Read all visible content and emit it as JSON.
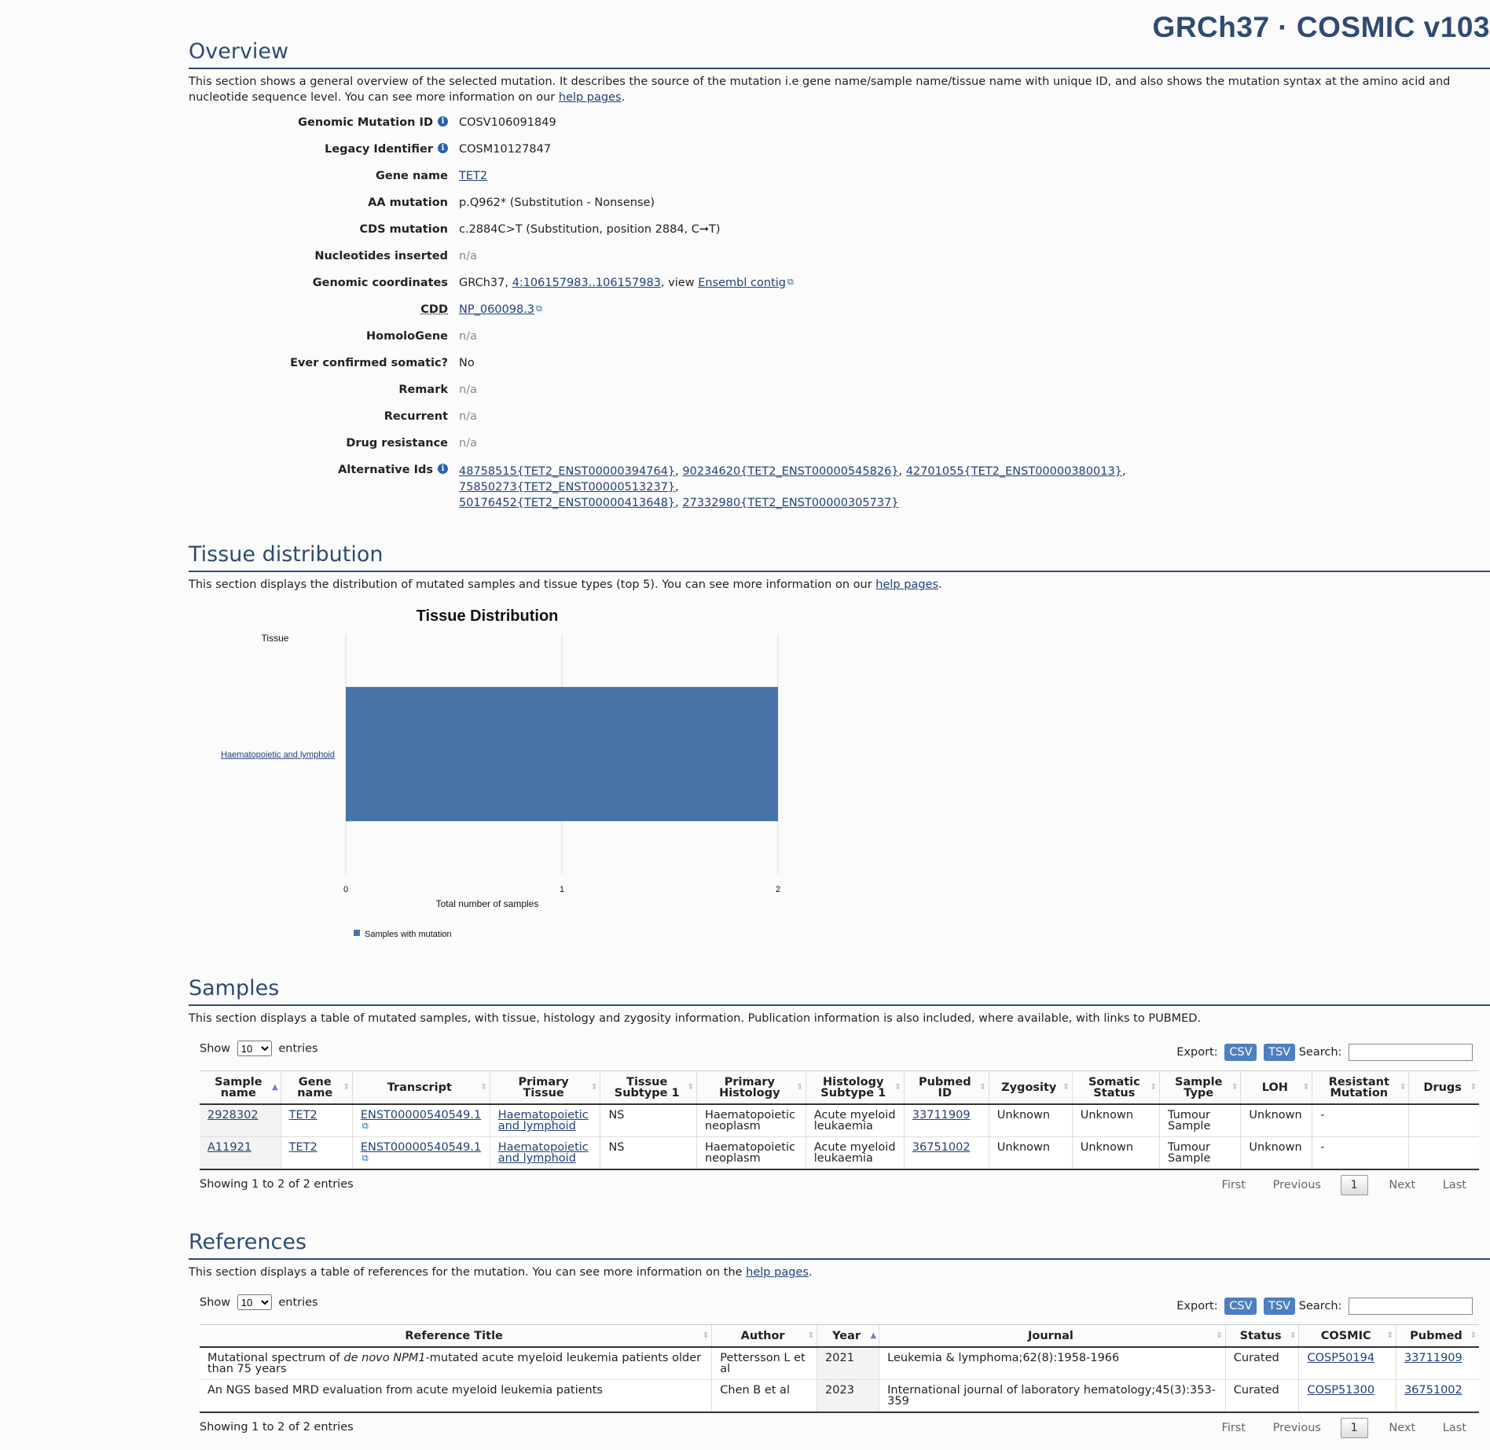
{
  "brand": "GRCh37 · COSMIC v103",
  "overview": {
    "title": "Overview",
    "desc_pre": "This section shows a general overview of the selected mutation. It describes the source of the mutation i.e gene name/sample name/tissue name with unique ID, and also shows the mutation syntax at the amino acid and nucleotide sequence level. You can see more information on our ",
    "desc_link": "help pages",
    "desc_post": ".",
    "fields": {
      "genomic_mutation_id": {
        "label": "Genomic Mutation ID",
        "value": "COSV106091849"
      },
      "legacy_identifier": {
        "label": "Legacy Identifier",
        "value": "COSM10127847"
      },
      "gene_name": {
        "label": "Gene name",
        "value": "TET2"
      },
      "aa_mutation": {
        "label": "AA mutation",
        "value": "p.Q962* (Substitution - Nonsense)"
      },
      "cds_mutation": {
        "label": "CDS mutation",
        "value": "c.2884C>T (Substitution, position 2884, C➞T)"
      },
      "nucleotides_inserted": {
        "label": "Nucleotides inserted",
        "value": "n/a"
      },
      "genomic_coordinates": {
        "label": "Genomic coordinates",
        "prefix": "GRCh37, ",
        "link": "4:106157983..106157983",
        "mid": ", view ",
        "link2": "Ensembl contig"
      },
      "cdd": {
        "label": "CDD",
        "value": "NP_060098.3"
      },
      "homologene": {
        "label": "HomoloGene",
        "value": "n/a"
      },
      "ever_confirmed": {
        "label": "Ever confirmed somatic?",
        "value": "No"
      },
      "remark": {
        "label": "Remark",
        "value": "n/a"
      },
      "recurrent": {
        "label": "Recurrent",
        "value": "n/a"
      },
      "drug_resistance": {
        "label": "Drug resistance",
        "value": "n/a"
      },
      "alternative_ids": {
        "label": "Alternative Ids",
        "values": [
          "48758515{TET2_ENST00000394764}",
          "90234620{TET2_ENST00000545826}",
          "42701055{TET2_ENST00000380013}",
          "75850273{TET2_ENST00000513237}",
          "50176452{TET2_ENST00000413648}",
          "27332980{TET2_ENST00000305737}"
        ]
      }
    }
  },
  "tissue": {
    "title": "Tissue distribution",
    "desc_pre": "This section displays the distribution of mutated samples and tissue types (top 5). You can see more information on our ",
    "desc_link": "help pages",
    "desc_post": "."
  },
  "chart_data": {
    "type": "bar",
    "orientation": "horizontal",
    "title": "Tissue Distribution",
    "ylabel": "Tissue",
    "xlabel": "Total number of samples",
    "categories": [
      "Haematopoietic and lymphoid"
    ],
    "series": [
      {
        "name": "Samples with mutation",
        "values": [
          2
        ],
        "color": "#4674a8"
      }
    ],
    "xlim": [
      0,
      2
    ],
    "xticks": [
      "0",
      "1",
      "2"
    ],
    "grid": true,
    "legend": "bottom-left"
  },
  "samples": {
    "title": "Samples",
    "desc": "This section displays a table of mutated samples, with tissue, histology and zygosity information. Publication information is also included, where available, with links to PUBMED.",
    "show_label": "Show",
    "entries_label": "entries",
    "page_size": "10",
    "export_label": "Export:",
    "csv": "CSV",
    "tsv": "TSV",
    "search_label": "Search:",
    "columns": [
      "Sample name",
      "Gene name",
      "Transcript",
      "Primary Tissue",
      "Tissue Subtype 1",
      "Primary Histology",
      "Histology Subtype 1",
      "Pubmed ID",
      "Zygosity",
      "Somatic Status",
      "Sample Type",
      "LOH",
      "Resistant Mutation",
      "Drugs"
    ],
    "rows": [
      [
        "2928302",
        "TET2",
        "ENST00000540549.1",
        "Haematopoietic and lymphoid",
        "NS",
        "Haematopoietic neoplasm",
        "Acute myeloid leukaemia",
        "33711909",
        "Unknown",
        "Unknown",
        "Tumour Sample",
        "Unknown",
        "-",
        ""
      ],
      [
        "A11921",
        "TET2",
        "ENST00000540549.1",
        "Haematopoietic and lymphoid",
        "NS",
        "Haematopoietic neoplasm",
        "Acute myeloid leukaemia",
        "36751002",
        "Unknown",
        "Unknown",
        "Tumour Sample",
        "Unknown",
        "-",
        ""
      ]
    ],
    "showing": "Showing 1 to 2 of 2 entries",
    "pager": {
      "first": "First",
      "previous": "Previous",
      "current": "1",
      "next": "Next",
      "last": "Last"
    }
  },
  "references": {
    "title": "References",
    "desc_pre": "This section displays a table of references for the mutation. You can see more information on the ",
    "desc_link": "help pages",
    "desc_post": ".",
    "show_label": "Show",
    "entries_label": "entries",
    "page_size": "10",
    "export_label": "Export:",
    "csv": "CSV",
    "tsv": "TSV",
    "search_label": "Search:",
    "columns": [
      "Reference Title",
      "Author",
      "Year",
      "Journal",
      "Status",
      "COSMIC",
      "Pubmed"
    ],
    "rows": [
      {
        "title_pre": "Mutational spectrum of ",
        "title_em": "de novo NPM1",
        "title_post": "-mutated acute myeloid leukemia patients older than 75 years",
        "author": "Pettersson L et al",
        "year": "2021",
        "journal": "Leukemia & lymphoma;62(8):1958-1966",
        "status": "Curated",
        "cosmic": "COSP50194",
        "pubmed": "33711909"
      },
      {
        "title_pre": "An NGS based MRD evaluation from acute myeloid leukemia patients",
        "title_em": "",
        "title_post": "",
        "author": "Chen B et al",
        "year": "2023",
        "journal": "International journal of laboratory hematology;45(3):353-359",
        "status": "Curated",
        "cosmic": "COSP51300",
        "pubmed": "36751002"
      }
    ],
    "showing": "Showing 1 to 2 of 2 entries",
    "pager": {
      "first": "First",
      "previous": "Previous",
      "current": "1",
      "next": "Next",
      "last": "Last"
    }
  }
}
